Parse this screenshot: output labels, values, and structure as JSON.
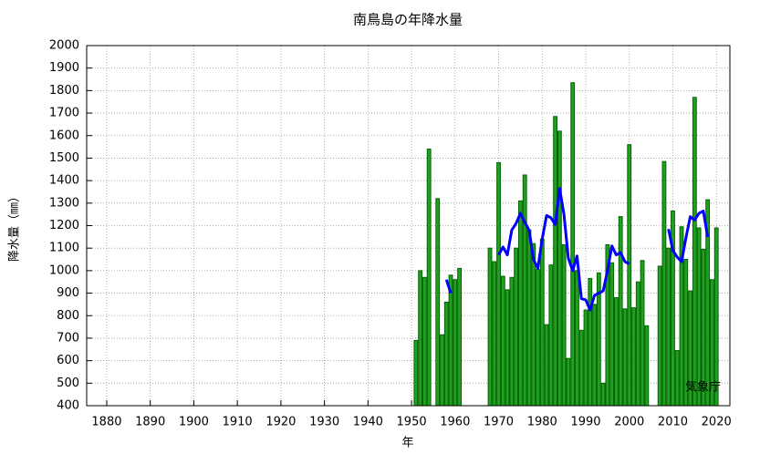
{
  "chart_data": {
    "type": "bar",
    "title": "南鳥島の年降水量",
    "x_label": "年",
    "y_label": "降水量（㎜）",
    "annotation": "気象庁",
    "grid": true,
    "xlim": [
      1875.4,
      2023.1
    ],
    "ylim": [
      400,
      2000
    ],
    "xticks": [
      1880,
      1890,
      1900,
      1910,
      1920,
      1930,
      1940,
      1950,
      1960,
      1970,
      1980,
      1990,
      2000,
      2010,
      2020
    ],
    "yticks": [
      400,
      500,
      600,
      700,
      800,
      900,
      1000,
      1100,
      1200,
      1300,
      1400,
      1500,
      1600,
      1700,
      1800,
      1900,
      2000
    ],
    "x": [
      1951,
      1952,
      1953,
      1954,
      1955,
      1956,
      1957,
      1958,
      1959,
      1960,
      1961,
      1962,
      1963,
      1964,
      1965,
      1966,
      1967,
      1968,
      1969,
      1970,
      1971,
      1972,
      1973,
      1974,
      1975,
      1976,
      1977,
      1978,
      1979,
      1980,
      1981,
      1982,
      1983,
      1984,
      1985,
      1986,
      1987,
      1988,
      1989,
      1990,
      1991,
      1992,
      1993,
      1994,
      1995,
      1996,
      1997,
      1998,
      1999,
      2000,
      2001,
      2002,
      2003,
      2004,
      2005,
      2006,
      2007,
      2008,
      2009,
      2010,
      2011,
      2012,
      2013,
      2014,
      2015,
      2016,
      2017,
      2018,
      2019,
      2020
    ],
    "series": [
      {
        "type": "bar",
        "color": "#22a022",
        "values": [
          690,
          1000,
          970,
          1540,
          null,
          1320,
          715,
          860,
          980,
          960,
          1010,
          null,
          null,
          null,
          null,
          null,
          null,
          1100,
          1040,
          1480,
          975,
          915,
          970,
          1100,
          1310,
          1425,
          1180,
          1120,
          1005,
          1140,
          760,
          1025,
          1685,
          1620,
          1115,
          610,
          1835,
          1000,
          735,
          825,
          965,
          850,
          990,
          500,
          1115,
          1035,
          880,
          1240,
          830,
          1560,
          835,
          950,
          1045,
          755,
          null,
          null,
          1020,
          1485,
          1100,
          1265,
          645,
          1195,
          1050,
          910,
          1770,
          1190,
          1095,
          1315,
          960,
          1190
        ]
      },
      {
        "type": "line",
        "color": "#0000ff",
        "values": [
          null,
          null,
          null,
          null,
          null,
          null,
          null,
          960,
          900,
          null,
          null,
          null,
          null,
          null,
          null,
          null,
          null,
          null,
          null,
          1070,
          1105,
          1070,
          1180,
          1210,
          1255,
          1215,
          1180,
          1050,
          1010,
          1140,
          1245,
          1235,
          1205,
          1365,
          1250,
          1055,
          1000,
          1065,
          875,
          870,
          825,
          890,
          900,
          910,
          1000,
          1110,
          1070,
          1080,
          1040,
          1030,
          null,
          null,
          null,
          null,
          null,
          null,
          null,
          null,
          1185,
          1090,
          1060,
          1040,
          1145,
          1240,
          1225,
          1255,
          1265,
          1150,
          null,
          null
        ]
      }
    ]
  }
}
